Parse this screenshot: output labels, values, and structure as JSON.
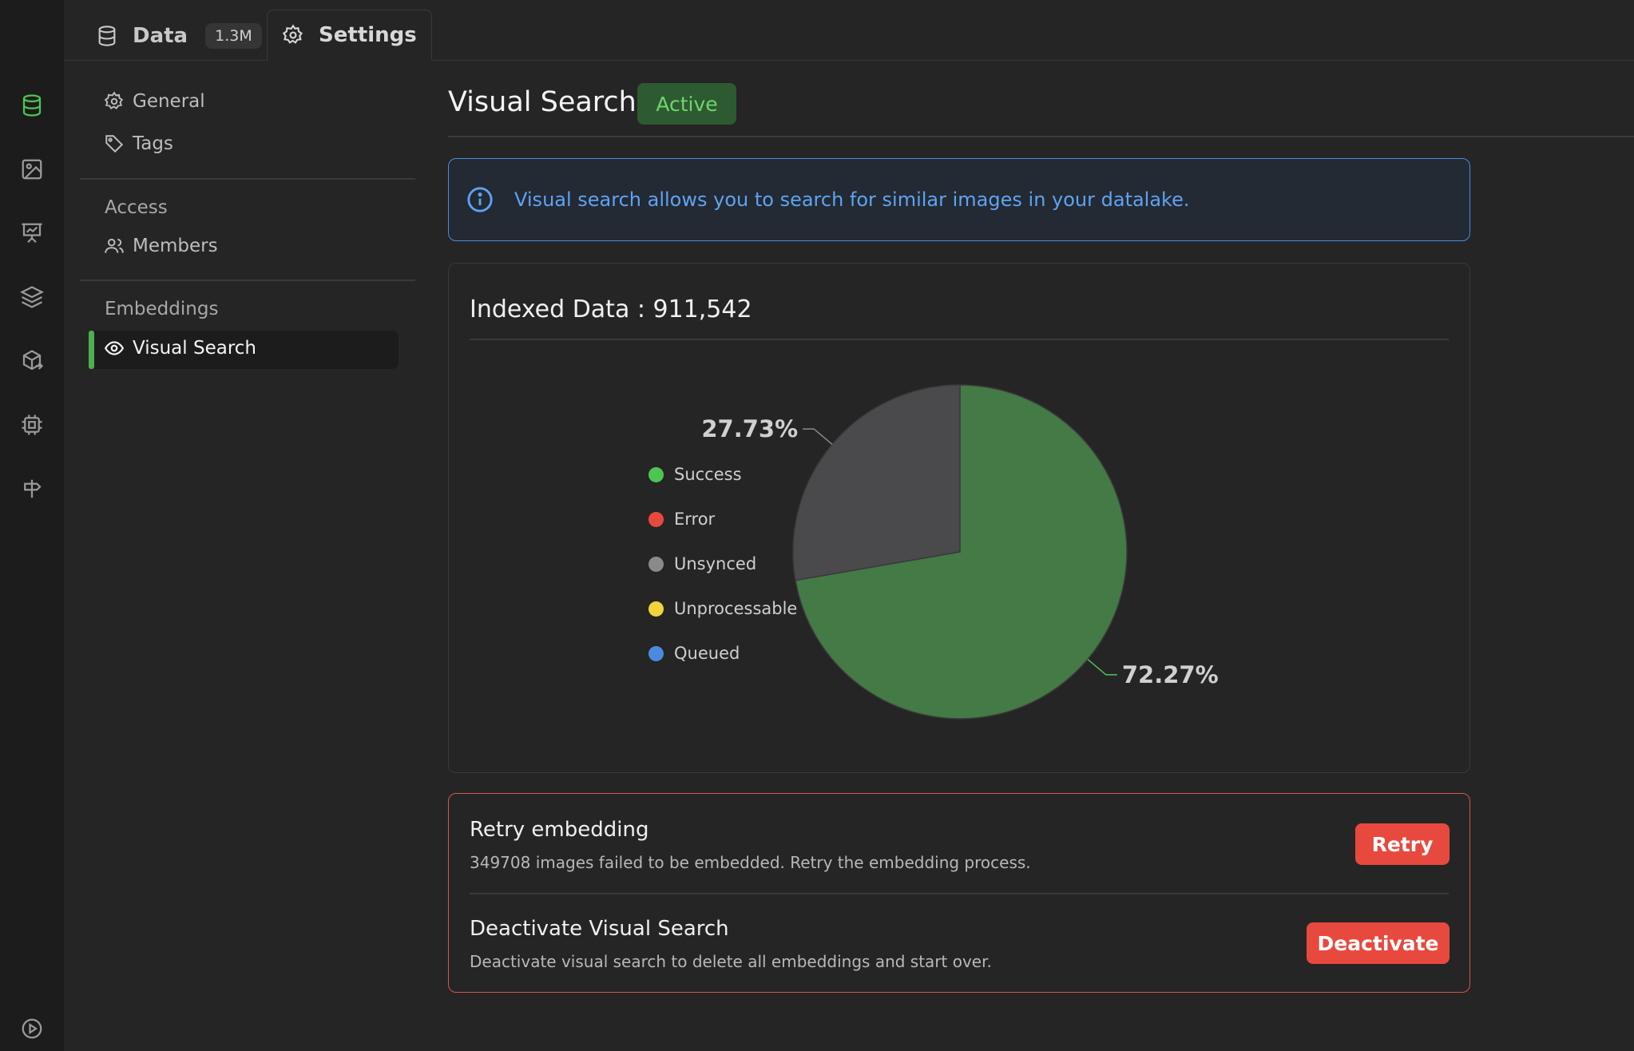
{
  "tabs": {
    "data": {
      "label": "Data",
      "count": "1.3M"
    },
    "settings": {
      "label": "Settings"
    }
  },
  "nav": {
    "general": "General",
    "tags": "Tags",
    "access_section": "Access",
    "members": "Members",
    "embeddings_section": "Embeddings",
    "visual_search": "Visual Search"
  },
  "header": {
    "title": "Visual Search",
    "status": "Active"
  },
  "info": {
    "text": "Visual search allows you to search for similar images in your datalake."
  },
  "indexed": {
    "label": "Indexed Data : 911,542"
  },
  "chart_data": {
    "type": "pie",
    "slices": [
      {
        "name": "Success",
        "value": 72.27,
        "label": "72.27%",
        "color": "#447a45"
      },
      {
        "name": "Unsynced",
        "value": 27.73,
        "label": "27.73%",
        "color": "#4a4a4c"
      }
    ],
    "legend": [
      {
        "name": "Success",
        "color": "#4cc552"
      },
      {
        "name": "Error",
        "color": "#e8493e"
      },
      {
        "name": "Unsynced",
        "color": "#8a8a8a"
      },
      {
        "name": "Unprocessable",
        "color": "#f2d43a"
      },
      {
        "name": "Queued",
        "color": "#4a8be0"
      }
    ],
    "legend_position": "left"
  },
  "retry": {
    "title": "Retry embedding",
    "description": "349708 images failed to be embedded. Retry the embedding process.",
    "button": "Retry"
  },
  "deactivate": {
    "title": "Deactivate Visual Search",
    "description": "Deactivate visual search to delete all embeddings and start over.",
    "button": "Deactivate"
  },
  "colors": {
    "accent_green": "#4caf50",
    "danger_red": "#e8493e",
    "info_blue": "#5ea3f2"
  }
}
